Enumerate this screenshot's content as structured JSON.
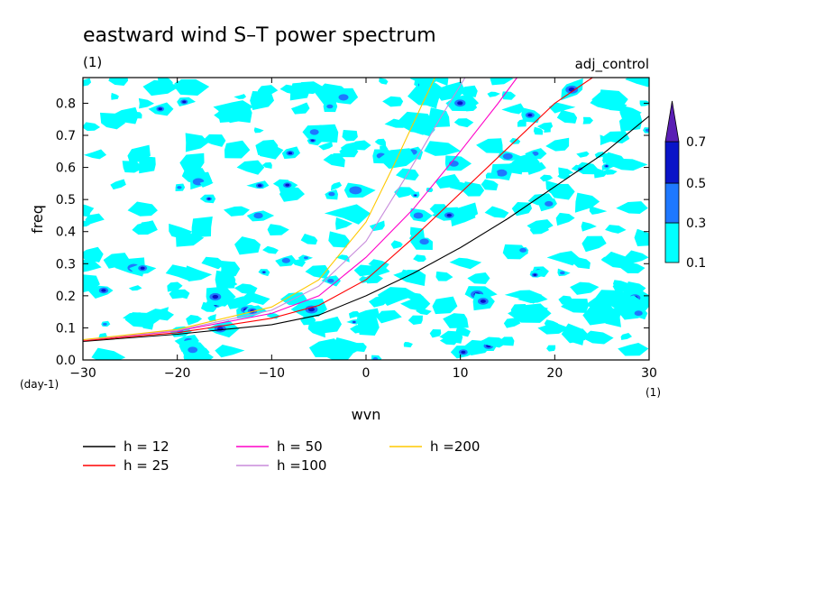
{
  "chart_data": {
    "type": "contour",
    "title": "eastward wind S–T power spectrum",
    "subtitle": "(1)",
    "run_label": "adj_control",
    "xlabel": "wvn",
    "ylabel": "freq",
    "x_unit": "(1)",
    "y_unit": "(day-1)",
    "xlim": [
      -30,
      30
    ],
    "ylim": [
      0,
      0.88
    ],
    "x_ticks": [
      -30,
      -20,
      -10,
      0,
      10,
      20,
      30
    ],
    "y_ticks": [
      0.0,
      0.1,
      0.2,
      0.3,
      0.4,
      0.5,
      0.6,
      0.7,
      0.8
    ],
    "y_tick_labels": [
      "0.0",
      "0.1",
      "0.2",
      "0.3",
      "0.4",
      "0.5",
      "0.6",
      "0.7",
      "0.8"
    ],
    "colorbar": {
      "levels": [
        0.1,
        0.3,
        0.5,
        0.7
      ],
      "level_labels": [
        "0.1",
        "0.3",
        "0.5",
        "0.7"
      ],
      "colors": [
        "#00ffff",
        "#1e78ff",
        "#0a14c8",
        "#5a1eb4"
      ]
    },
    "series": [
      {
        "name": "h = 12",
        "color": "#000000",
        "x": [
          -30,
          -20,
          -10,
          -5,
          0,
          5,
          10,
          15,
          20,
          25,
          30
        ],
        "y": [
          0.058,
          0.08,
          0.11,
          0.14,
          0.2,
          0.27,
          0.35,
          0.44,
          0.54,
          0.64,
          0.76
        ]
      },
      {
        "name": "h = 25",
        "color": "#ff0000",
        "x": [
          -30,
          -20,
          -10,
          -5,
          0,
          5,
          10,
          15,
          20,
          24
        ],
        "y": [
          0.06,
          0.085,
          0.13,
          0.17,
          0.25,
          0.38,
          0.52,
          0.66,
          0.8,
          0.88
        ]
      },
      {
        "name": "h = 50",
        "color": "#ff00c8",
        "x": [
          -30,
          -20,
          -10,
          -5,
          0,
          5,
          10,
          14,
          16
        ],
        "y": [
          0.062,
          0.09,
          0.145,
          0.2,
          0.32,
          0.47,
          0.65,
          0.8,
          0.88
        ]
      },
      {
        "name": "h =100",
        "color": "#c88cdc",
        "x": [
          -30,
          -20,
          -10,
          -5,
          0,
          4,
          8,
          10.5
        ],
        "y": [
          0.062,
          0.092,
          0.155,
          0.23,
          0.37,
          0.56,
          0.76,
          0.88
        ]
      },
      {
        "name": "h =200",
        "color": "#ffc800",
        "x": [
          -30,
          -20,
          -10,
          -5,
          0,
          3,
          6,
          7.3
        ],
        "y": [
          0.063,
          0.095,
          0.165,
          0.25,
          0.43,
          0.61,
          0.8,
          0.88
        ]
      }
    ]
  }
}
